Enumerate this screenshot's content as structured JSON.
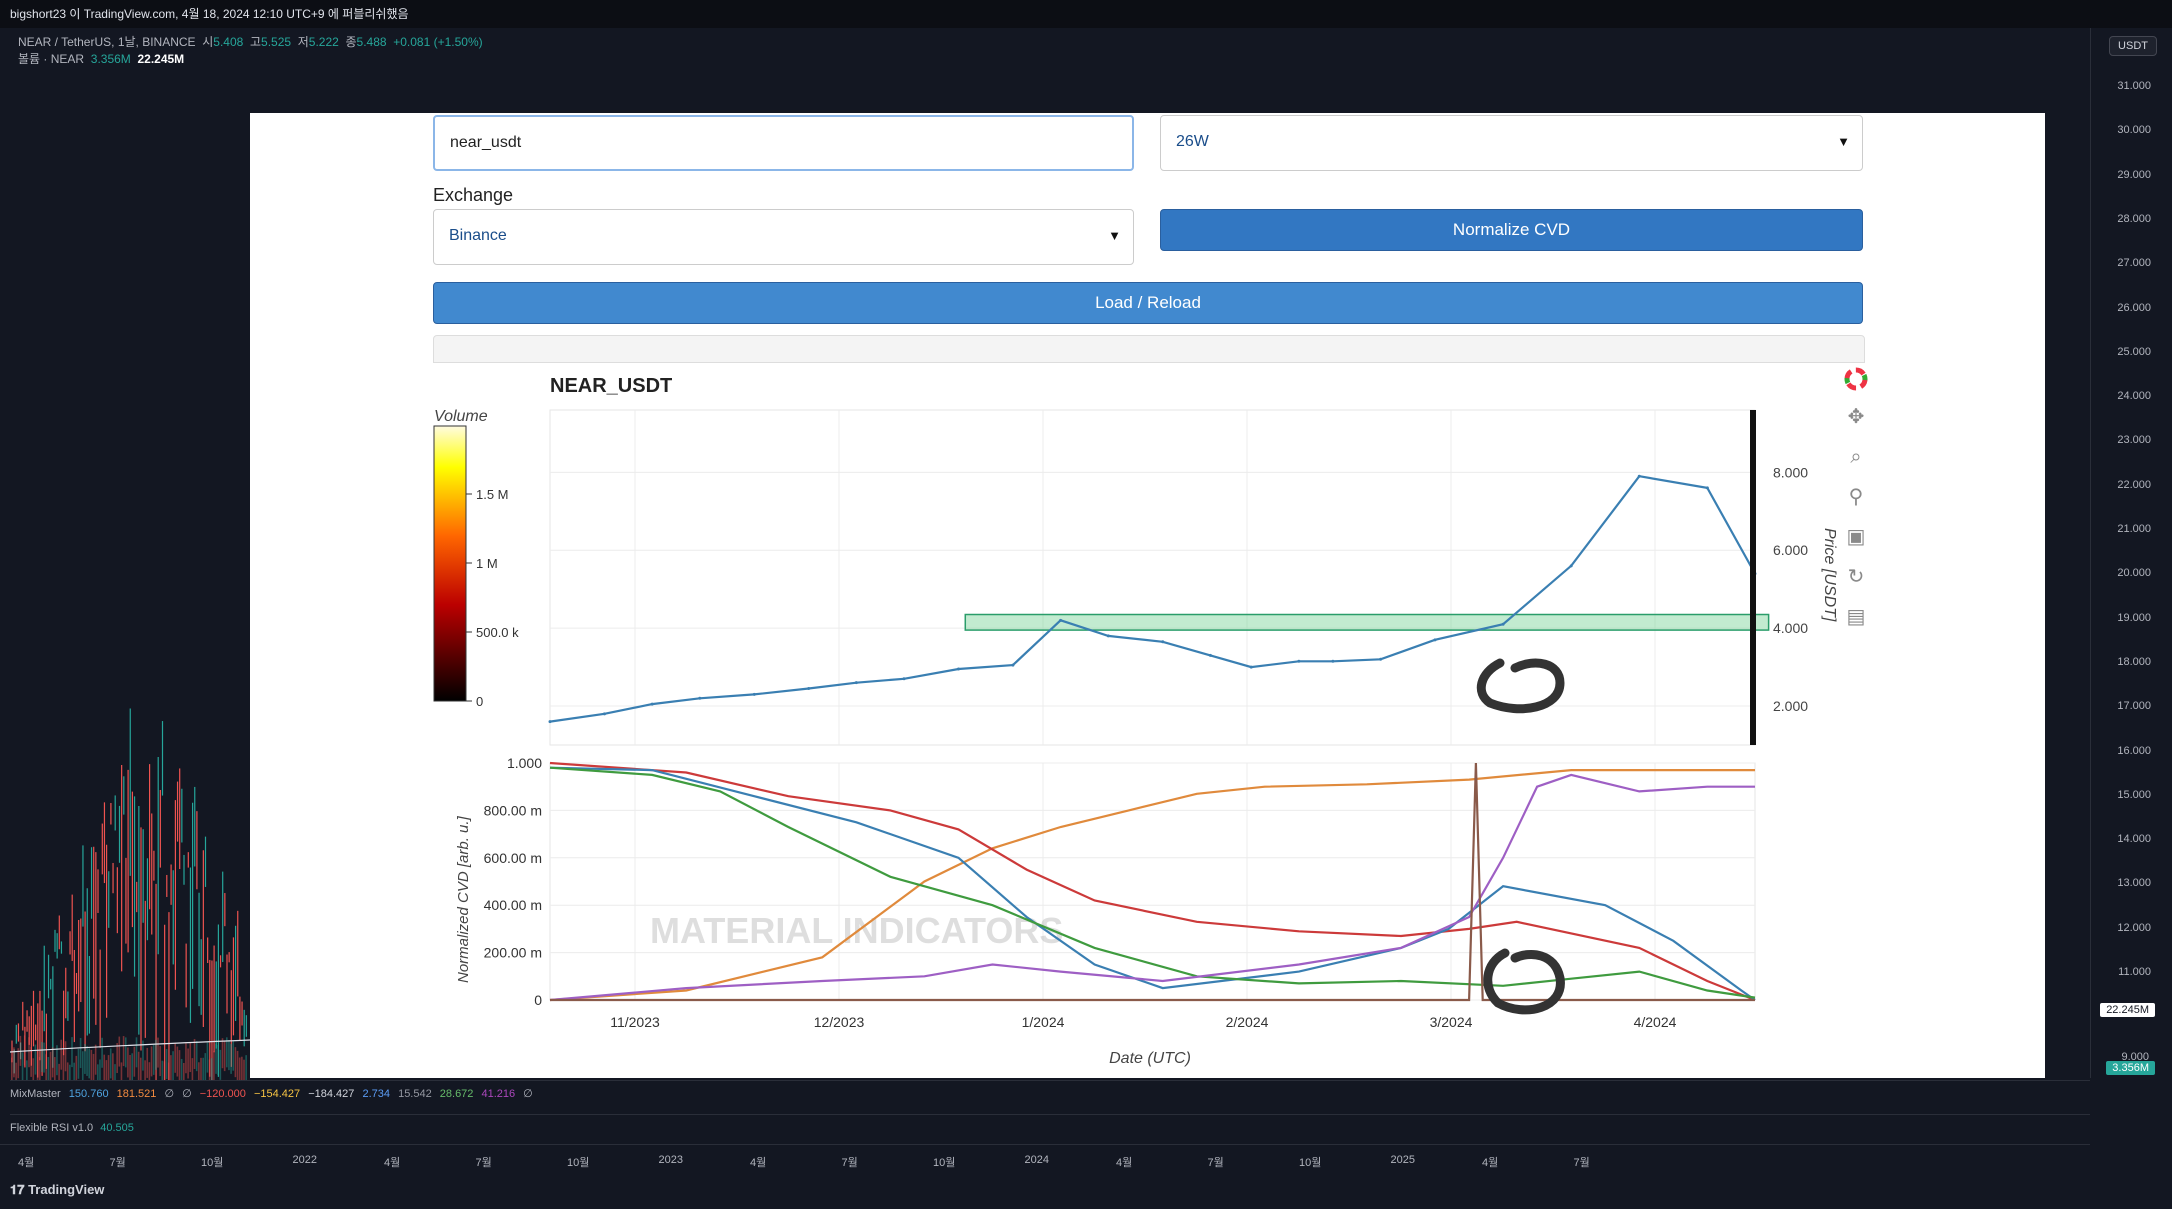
{
  "topbar": {
    "text": "bigshort23 이 TradingView.com, 4월 18, 2024 12:10 UTC+9 에 퍼블리쉬했음"
  },
  "legend": {
    "symbol": "NEAR / TetherUS, 1날, BINANCE",
    "open_label": "시",
    "open": "5.408",
    "high_label": "고",
    "high": "5.525",
    "low_label": "저",
    "low": "5.222",
    "close_label": "종",
    "close": "5.488",
    "change": "+0.081 (+1.50%)",
    "volume_label": "볼륨 · NEAR",
    "volume": "3.356M",
    "volume_ma": "22.245M"
  },
  "right_axis": {
    "currency": "USDT",
    "ticks": [
      "31.000",
      "30.000",
      "29.000",
      "28.000",
      "27.000",
      "26.000",
      "25.000",
      "24.000",
      "23.000",
      "22.000",
      "21.000",
      "20.000",
      "19.000",
      "18.000",
      "17.000",
      "16.000",
      "15.000",
      "14.000",
      "13.000",
      "12.000",
      "11.000"
    ],
    "tag_volume_ma": "22.245M",
    "tag_volume": "3.356M",
    "tag_partial": "9.000"
  },
  "indicators": {
    "mixmaster_name": "MixMaster",
    "mixmaster_values": [
      {
        "v": "150.760",
        "c": "#4fa3e0"
      },
      {
        "v": "181.521",
        "c": "#f28b40"
      },
      {
        "v": "∅",
        "c": "#b2b5be"
      },
      {
        "v": "∅",
        "c": "#b2b5be"
      },
      {
        "v": "−120.000",
        "c": "#ef5350"
      },
      {
        "v": "−154.427",
        "c": "#f6c343"
      },
      {
        "v": "−184.427",
        "c": "#d1d4dc"
      },
      {
        "v": "2.734",
        "c": "#5b9cf5"
      },
      {
        "v": "15.542",
        "c": "#9598a1"
      },
      {
        "v": "28.672",
        "c": "#66bb6a"
      },
      {
        "v": "41.216",
        "c": "#ab47bc"
      },
      {
        "v": "∅",
        "c": "#b2b5be"
      }
    ],
    "rsi_name": "Flexible RSI v1.0",
    "rsi_value": "40.505"
  },
  "time_axis": [
    "4월",
    "7월",
    "10월",
    "2022",
    "4월",
    "7월",
    "10월",
    "2023",
    "4월",
    "7월",
    "10월",
    "2024",
    "4월",
    "7월",
    "10월",
    "2025",
    "4월",
    "7월"
  ],
  "brand": "TradingView",
  "app": {
    "symbol_value": "near_usdt",
    "interval_value": "26W",
    "exchange_label": "Exchange",
    "exchange_value": "Binance",
    "normalize_button": "Normalize CVD",
    "load_button": "Load / Reload"
  },
  "chart_data": [
    {
      "type": "line",
      "title": "NEAR_USDT",
      "ylabel": "Price [USDT]",
      "yticks": [
        "2.000",
        "4.000",
        "6.000",
        "8.000"
      ],
      "ylim": [
        1,
        9.6
      ],
      "xticks": [
        "11/2023",
        "12/2023",
        "1/2024",
        "2/2024",
        "3/2024",
        "4/2024"
      ],
      "xlim": [
        0,
        177
      ],
      "colorbar_label": "Volume",
      "colorbar_ticks": [
        "0",
        "500.0 k",
        "1 M",
        "1.5 M"
      ],
      "series": [
        {
          "color": "#3a7fb2",
          "x": [
            0,
            8,
            15,
            22,
            30,
            38,
            45,
            52,
            60,
            68,
            75,
            82,
            90,
            97,
            103,
            110,
            115,
            122,
            130,
            140,
            150,
            160,
            170,
            177
          ],
          "values": [
            1.6,
            1.8,
            2.05,
            2.2,
            2.3,
            2.45,
            2.6,
            2.7,
            2.95,
            3.05,
            4.2,
            3.8,
            3.65,
            3.3,
            3.0,
            3.15,
            3.15,
            3.2,
            3.7,
            4.1,
            5.6,
            7.9,
            7.6,
            5.4
          ]
        }
      ],
      "zone": {
        "y_from": 3.95,
        "y_to": 4.35,
        "x_from": 61,
        "x_to": 179
      }
    },
    {
      "type": "line",
      "ylabel": "Normalized CVD [arb. u.]",
      "xlabel": "Date (UTC)",
      "yticks": [
        "0",
        "200.00 m",
        "400.00 m",
        "600.00 m",
        "800.00 m",
        "1.000"
      ],
      "ylim": [
        0,
        1
      ],
      "xticks": [
        "11/2023",
        "12/2023",
        "1/2024",
        "2/2024",
        "3/2024",
        "4/2024"
      ],
      "xlim": [
        0,
        177
      ],
      "series": [
        {
          "color": "#e08a3c",
          "x": [
            0,
            20,
            40,
            55,
            65,
            75,
            85,
            95,
            105,
            120,
            135,
            150,
            177
          ],
          "values": [
            0.0,
            0.04,
            0.18,
            0.5,
            0.64,
            0.73,
            0.8,
            0.87,
            0.9,
            0.91,
            0.93,
            0.97,
            0.97
          ]
        },
        {
          "color": "#cc3a3a",
          "x": [
            0,
            20,
            35,
            50,
            60,
            70,
            80,
            95,
            110,
            125,
            135,
            142,
            160,
            170,
            177
          ],
          "values": [
            1.0,
            0.96,
            0.86,
            0.8,
            0.72,
            0.55,
            0.42,
            0.33,
            0.29,
            0.27,
            0.3,
            0.33,
            0.22,
            0.08,
            0.0
          ]
        },
        {
          "color": "#3a7fb2",
          "x": [
            0,
            15,
            30,
            45,
            60,
            70,
            80,
            90,
            110,
            125,
            132,
            140,
            155,
            165,
            175,
            177
          ],
          "values": [
            0.98,
            0.97,
            0.86,
            0.75,
            0.6,
            0.35,
            0.15,
            0.05,
            0.12,
            0.22,
            0.3,
            0.48,
            0.4,
            0.25,
            0.04,
            0.0
          ]
        },
        {
          "color": "#3f9b3f",
          "x": [
            0,
            15,
            25,
            35,
            50,
            65,
            80,
            95,
            110,
            125,
            140,
            150,
            160,
            170,
            177
          ],
          "values": [
            0.98,
            0.95,
            0.88,
            0.73,
            0.52,
            0.4,
            0.22,
            0.1,
            0.07,
            0.08,
            0.06,
            0.09,
            0.12,
            0.04,
            0.01
          ]
        },
        {
          "color": "#9e5fc4",
          "x": [
            0,
            20,
            40,
            55,
            65,
            75,
            90,
            110,
            125,
            135,
            140,
            145,
            150,
            160,
            170,
            177
          ],
          "values": [
            0.0,
            0.05,
            0.08,
            0.1,
            0.15,
            0.12,
            0.08,
            0.15,
            0.22,
            0.35,
            0.6,
            0.9,
            0.95,
            0.88,
            0.9,
            0.9
          ]
        },
        {
          "color": "#8a5a4a",
          "x": [
            0,
            135,
            136,
            137,
            177
          ],
          "values": [
            0.0,
            0.0,
            1.0,
            0.0,
            0.0
          ]
        }
      ],
      "watermark": "MATERIAL INDICATORS"
    }
  ]
}
